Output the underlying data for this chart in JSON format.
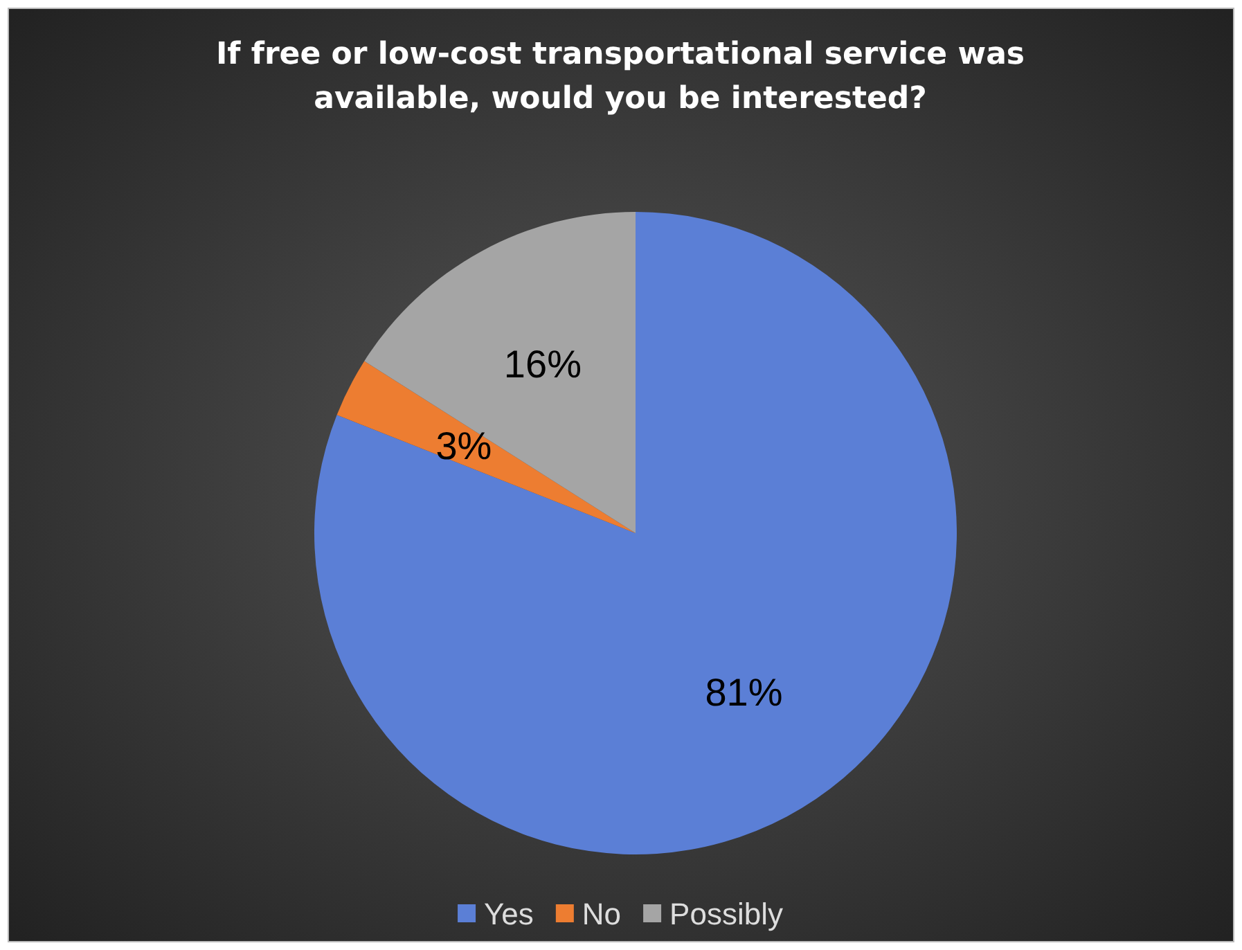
{
  "chart_data": {
    "type": "pie",
    "title": "If free or low-cost transportational service was available, would you be interested?",
    "categories": [
      "Yes",
      "No",
      "Possibly"
    ],
    "values": [
      81,
      3,
      16
    ],
    "colors": [
      "#5b7fd6",
      "#ed7d31",
      "#a5a5a5"
    ],
    "value_labels": [
      "81%",
      "3%",
      "16%"
    ],
    "legend": "bottom"
  }
}
